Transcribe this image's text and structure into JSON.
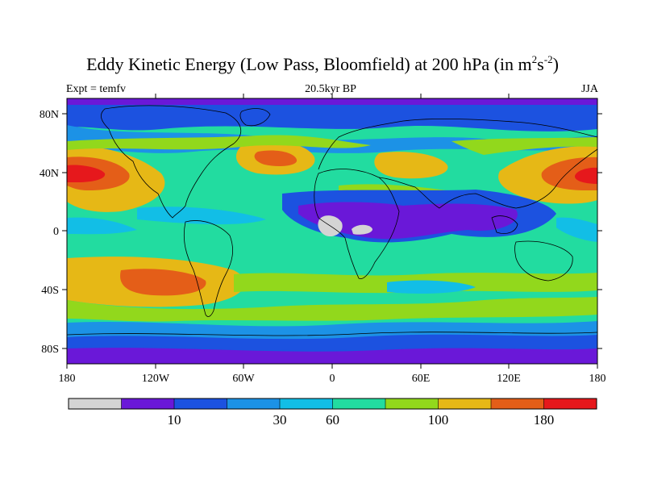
{
  "title": {
    "main": "Eddy Kinetic Energy (Low Pass, Bloomfield) at 200 hPa (in m",
    "sup1": "2",
    "mid": "s",
    "sup2": "-2",
    "end": ")"
  },
  "subtitle": "20.5kyr BP",
  "left_label": "Expt = temfv",
  "right_label": "JJA",
  "axes": {
    "lat_ticks": [
      "80N",
      "40N",
      "0",
      "40S",
      "80S"
    ],
    "lon_ticks": [
      "180",
      "120W",
      "60W",
      "0",
      "60E",
      "120E",
      "180"
    ]
  },
  "colorbar": {
    "colors": [
      "#d4d4d4",
      "#6a18d8",
      "#1c52e0",
      "#1c92e6",
      "#12bee6",
      "#22dca0",
      "#92d81c",
      "#e6b816",
      "#e45e18",
      "#e6181c"
    ],
    "labels": [
      {
        "text": "10",
        "boundary": 2
      },
      {
        "text": "30",
        "boundary": 4
      },
      {
        "text": "60",
        "boundary": 5
      },
      {
        "text": "100",
        "boundary": 7
      },
      {
        "text": "180",
        "boundary": 9
      }
    ]
  }
}
